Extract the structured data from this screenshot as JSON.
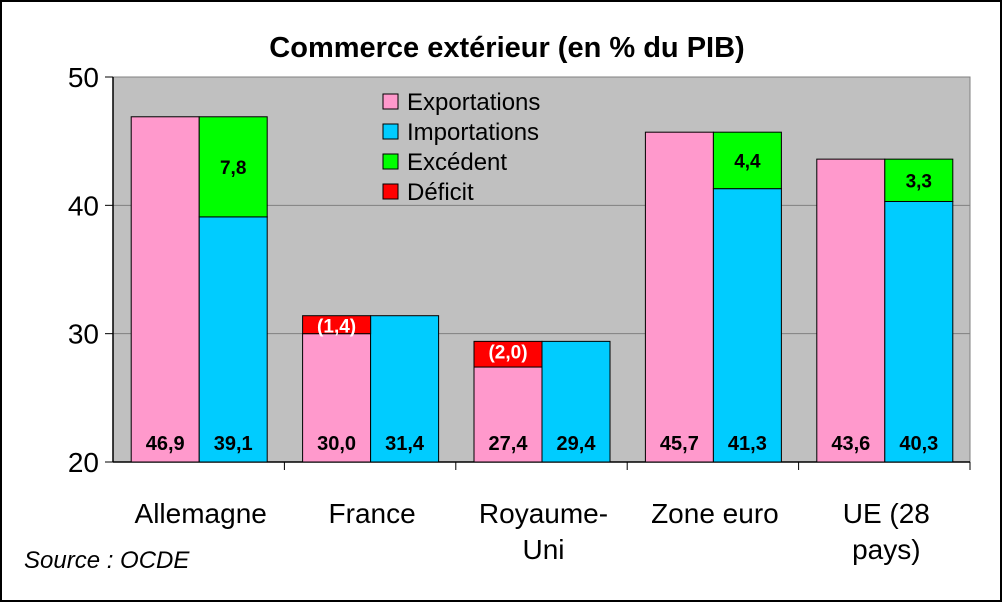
{
  "chart_data": {
    "type": "bar",
    "title": "Commerce extérieur (en % du PIB)",
    "source": "Source : OCDE",
    "ylim": [
      20,
      50
    ],
    "yticks": [
      "20",
      "30",
      "40",
      "50"
    ],
    "grid": true,
    "legend_position": "top-center",
    "legend": [
      {
        "label": "Exportations",
        "color": "#ff99cc"
      },
      {
        "label": "Importations",
        "color": "#00ccff"
      },
      {
        "label": "Excédent",
        "color": "#00ff00"
      },
      {
        "label": "Déficit",
        "color": "#ff0000"
      }
    ],
    "colors": {
      "exportations": "#ff99cc",
      "importations": "#00ccff",
      "excedent": "#00ff00",
      "deficit": "#ff0000",
      "plot_background": "#c0c0c0"
    },
    "categories": [
      {
        "lines": [
          "Allemagne"
        ],
        "exportations": 46.9,
        "importations": 39.1,
        "exp_label": "46,9",
        "imp_label": "39,1",
        "balance_type": "excedent",
        "balance": 7.8,
        "balance_label": "7,8"
      },
      {
        "lines": [
          "France"
        ],
        "exportations": 30.0,
        "importations": 31.4,
        "exp_label": "30,0",
        "imp_label": "31,4",
        "balance_type": "deficit",
        "balance": -1.4,
        "balance_label": "(1,4)"
      },
      {
        "lines": [
          "Royaume-",
          "Uni"
        ],
        "exportations": 27.4,
        "importations": 29.4,
        "exp_label": "27,4",
        "imp_label": "29,4",
        "balance_type": "deficit",
        "balance": -2.0,
        "balance_label": "(2,0)"
      },
      {
        "lines": [
          "Zone euro"
        ],
        "exportations": 45.7,
        "importations": 41.3,
        "exp_label": "45,7",
        "imp_label": "41,3",
        "balance_type": "excedent",
        "balance": 4.4,
        "balance_label": "4,4"
      },
      {
        "lines": [
          "UE (28",
          "pays)"
        ],
        "exportations": 43.6,
        "importations": 40.3,
        "exp_label": "43,6",
        "imp_label": "40,3",
        "balance_type": "excedent",
        "balance": 3.3,
        "balance_label": "3,3"
      }
    ]
  }
}
